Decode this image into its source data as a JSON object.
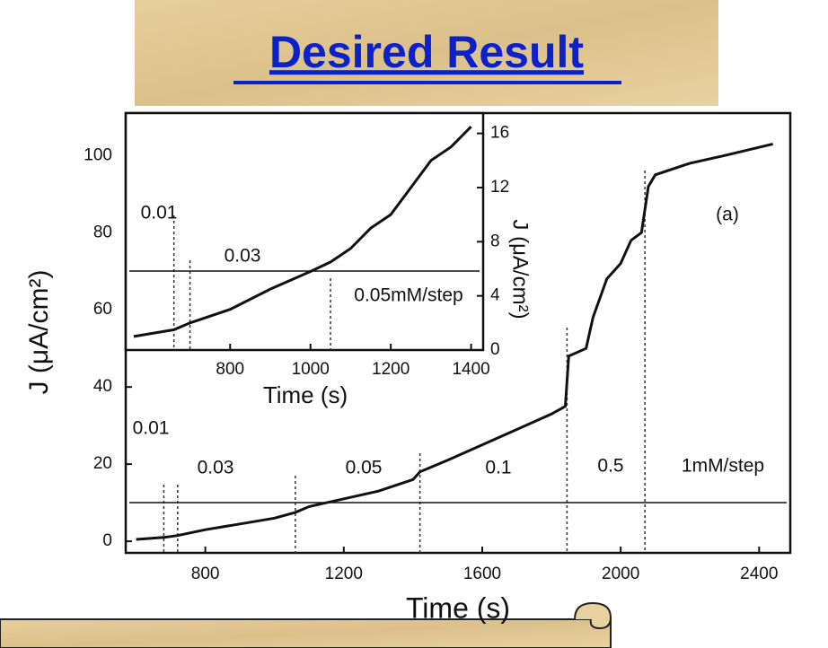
{
  "header": {
    "title": "Desired Result"
  },
  "chart_data": [
    {
      "type": "line",
      "x_label": "Time (s)",
      "y_label": "J (μA/cm²)",
      "series": [
        {
          "color": "#111111",
          "x": [
            600,
            680,
            720,
            800,
            900,
            1000,
            1060,
            1100,
            1200,
            1300,
            1400,
            1420,
            1500,
            1600,
            1700,
            1800,
            1840,
            1850,
            1900,
            1920,
            1960,
            2000,
            2030,
            2060,
            2080,
            2100,
            2200,
            2300,
            2440
          ],
          "values": [
            0.5,
            1,
            1.5,
            3,
            4.5,
            6,
            7.5,
            9,
            11,
            13,
            16,
            18,
            21,
            25,
            29,
            33,
            35,
            48,
            50,
            58,
            68,
            72,
            78,
            80,
            92,
            95,
            98,
            100,
            103
          ]
        }
      ],
      "vlines": [
        680,
        720,
        1060,
        1420,
        1845,
        2070
      ],
      "xlim": [
        570,
        2490
      ],
      "ylim": [
        -3,
        111
      ],
      "xticks": [
        800,
        1200,
        1600,
        2000,
        2400
      ],
      "yticks": [
        0,
        20,
        40,
        60,
        80,
        100
      ],
      "annotations": [
        "0.01",
        "0.03",
        "0.05",
        "0.1",
        "0.5",
        "1mM/step",
        "(a)"
      ]
    },
    {
      "type": "line",
      "x_label": "Time (s)",
      "y_label": "J (μA/cm²)",
      "series": [
        {
          "color": "#111111",
          "x": [
            560,
            660,
            700,
            800,
            900,
            1000,
            1050,
            1100,
            1150,
            1200,
            1250,
            1300,
            1350,
            1400
          ],
          "values": [
            1,
            1.5,
            2,
            3,
            4.5,
            5.8,
            6.5,
            7.5,
            9,
            10,
            12,
            14,
            15,
            16.5
          ]
        }
      ],
      "vlines": [
        660,
        700,
        1050
      ],
      "xlim": [
        540,
        1430
      ],
      "ylim": [
        0,
        17.5
      ],
      "xticks": [
        800,
        1000,
        1200,
        1400
      ],
      "yticks": [
        0,
        4,
        8,
        12,
        16
      ],
      "annotations": [
        "0.01",
        "0.03",
        "0.05mM/step"
      ]
    }
  ]
}
